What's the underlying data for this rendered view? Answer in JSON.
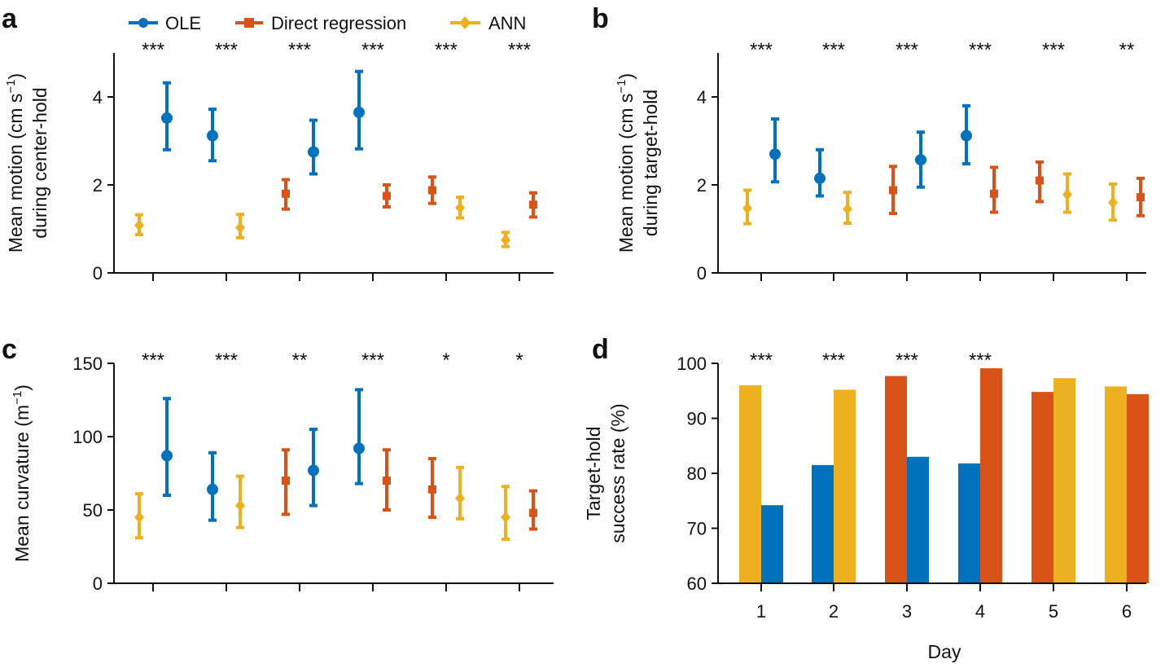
{
  "colors": {
    "ole": "#0072bd",
    "direct": "#d95319",
    "ann": "#edb120",
    "axis": "#111111"
  },
  "legend": [
    {
      "name": "OLE",
      "color": "#0072bd",
      "marker": "circle"
    },
    {
      "name": "Direct regression",
      "color": "#d95319",
      "marker": "square"
    },
    {
      "name": "ANN",
      "color": "#edb120",
      "marker": "diamond"
    }
  ],
  "chart_data": [
    {
      "panel": "a",
      "type": "errorbar",
      "ylabel_line1": "Mean motion (cm s",
      "ylabel_sup": "−1",
      "ylabel_line1_end": ")",
      "ylabel_line2": "during center-hold",
      "ylim": [
        0,
        5
      ],
      "yticks": [
        "0",
        "2",
        "4"
      ],
      "ytick_values": [
        0,
        2,
        4
      ],
      "x": [
        1,
        2,
        3,
        4,
        5,
        6
      ],
      "significance": [
        "***",
        "***",
        "***",
        "***",
        "***",
        "***"
      ],
      "series": [
        {
          "name": "OLE",
          "color": "#0072bd",
          "marker": "circle",
          "offsets": [
            0.1,
            -0.1,
            0.1,
            -0.1,
            null,
            null
          ],
          "values": [
            3.52,
            3.12,
            2.75,
            3.65,
            null,
            null
          ],
          "lo": [
            2.8,
            2.55,
            2.25,
            2.82,
            null,
            null
          ],
          "hi": [
            4.32,
            3.72,
            3.47,
            4.58,
            null,
            null
          ]
        },
        {
          "name": "Direct regression",
          "color": "#d95319",
          "marker": "square",
          "offsets": [
            null,
            null,
            -0.1,
            0.1,
            -0.1,
            0.1
          ],
          "values": [
            null,
            null,
            1.8,
            1.75,
            1.88,
            1.55
          ],
          "lo": [
            null,
            null,
            1.45,
            1.5,
            1.58,
            1.27
          ],
          "hi": [
            null,
            null,
            2.12,
            2.0,
            2.18,
            1.82
          ]
        },
        {
          "name": "ANN",
          "color": "#edb120",
          "marker": "diamond",
          "offsets": [
            -0.1,
            0.1,
            null,
            null,
            0.1,
            -0.1
          ],
          "values": [
            1.08,
            1.03,
            null,
            null,
            1.48,
            0.75
          ],
          "lo": [
            0.87,
            0.8,
            null,
            null,
            1.25,
            0.6
          ],
          "hi": [
            1.32,
            1.33,
            null,
            null,
            1.72,
            0.92
          ]
        }
      ]
    },
    {
      "panel": "b",
      "type": "errorbar",
      "ylabel_line1": "Mean motion (cm s",
      "ylabel_sup": "−1",
      "ylabel_line1_end": ")",
      "ylabel_line2": "during target-hold",
      "ylim": [
        0,
        5
      ],
      "yticks": [
        "0",
        "2",
        "4"
      ],
      "ytick_values": [
        0,
        2,
        4
      ],
      "x": [
        1,
        2,
        3,
        4,
        5,
        6
      ],
      "significance": [
        "***",
        "***",
        "***",
        "***",
        "***",
        "**"
      ],
      "series": [
        {
          "name": "OLE",
          "color": "#0072bd",
          "marker": "circle",
          "offsets": [
            0.1,
            -0.1,
            0.1,
            -0.1,
            null,
            null
          ],
          "values": [
            2.7,
            2.15,
            2.57,
            3.12,
            null,
            null
          ],
          "lo": [
            2.07,
            1.75,
            1.95,
            2.48,
            null,
            null
          ],
          "hi": [
            3.5,
            2.8,
            3.2,
            3.8,
            null,
            null
          ]
        },
        {
          "name": "Direct regression",
          "color": "#d95319",
          "marker": "square",
          "offsets": [
            null,
            null,
            -0.1,
            0.1,
            -0.1,
            0.1
          ],
          "values": [
            null,
            null,
            1.88,
            1.8,
            2.1,
            1.72
          ],
          "lo": [
            null,
            null,
            1.35,
            1.38,
            1.62,
            1.3
          ],
          "hi": [
            null,
            null,
            2.42,
            2.4,
            2.52,
            2.15
          ]
        },
        {
          "name": "ANN",
          "color": "#edb120",
          "marker": "diamond",
          "offsets": [
            -0.1,
            0.1,
            null,
            null,
            0.1,
            -0.1
          ],
          "values": [
            1.47,
            1.45,
            null,
            null,
            1.78,
            1.6
          ],
          "lo": [
            1.12,
            1.13,
            null,
            null,
            1.38,
            1.2
          ],
          "hi": [
            1.88,
            1.83,
            null,
            null,
            2.25,
            2.02
          ]
        }
      ]
    },
    {
      "panel": "c",
      "type": "errorbar",
      "ylabel_line1": "Mean curvature (m",
      "ylabel_sup": "−1",
      "ylabel_line1_end": ")",
      "ylabel_line2": "",
      "ylim": [
        0,
        150
      ],
      "yticks": [
        "0",
        "50",
        "100",
        "150"
      ],
      "ytick_values": [
        0,
        50,
        100,
        150
      ],
      "x": [
        1,
        2,
        3,
        4,
        5,
        6
      ],
      "significance": [
        "***",
        "***",
        "**",
        "***",
        "*",
        "*"
      ],
      "series": [
        {
          "name": "OLE",
          "color": "#0072bd",
          "marker": "circle",
          "offsets": [
            0.1,
            -0.1,
            0.1,
            -0.1,
            null,
            null
          ],
          "values": [
            87,
            64,
            77,
            92,
            null,
            null
          ],
          "lo": [
            60,
            43,
            53,
            68,
            null,
            null
          ],
          "hi": [
            126,
            89,
            105,
            132,
            null,
            null
          ]
        },
        {
          "name": "Direct regression",
          "color": "#d95319",
          "marker": "square",
          "offsets": [
            null,
            null,
            -0.1,
            0.1,
            -0.1,
            0.1
          ],
          "values": [
            null,
            null,
            70,
            70,
            64,
            48
          ],
          "lo": [
            null,
            null,
            47,
            50,
            45,
            37
          ],
          "hi": [
            null,
            null,
            91,
            91,
            85,
            63
          ]
        },
        {
          "name": "ANN",
          "color": "#edb120",
          "marker": "diamond",
          "offsets": [
            -0.1,
            0.1,
            null,
            null,
            0.1,
            -0.1
          ],
          "values": [
            45,
            53,
            null,
            null,
            58,
            45
          ],
          "lo": [
            31,
            38,
            null,
            null,
            44,
            30
          ],
          "hi": [
            61,
            73,
            null,
            null,
            79,
            66
          ]
        }
      ]
    },
    {
      "panel": "d",
      "type": "bar",
      "ylabel_line1": "Target-hold",
      "ylabel_line2": "success rate (%)",
      "xlabel": "Day",
      "ylim": [
        60,
        100
      ],
      "yticks": [
        "60",
        "70",
        "80",
        "90",
        "100"
      ],
      "ytick_values": [
        60,
        70,
        80,
        90,
        100
      ],
      "categories": [
        "1",
        "2",
        "3",
        "4",
        "5",
        "6"
      ],
      "significance": [
        "***",
        "***",
        "***",
        "***",
        "",
        ""
      ],
      "bars": [
        [
          {
            "series": "ANN",
            "color": "#edb120",
            "value": 96
          },
          {
            "series": "OLE",
            "color": "#0072bd",
            "value": 74.2
          }
        ],
        [
          {
            "series": "OLE",
            "color": "#0072bd",
            "value": 81.5
          },
          {
            "series": "ANN",
            "color": "#edb120",
            "value": 95.2
          }
        ],
        [
          {
            "series": "Direct regression",
            "color": "#d95319",
            "value": 97.7
          },
          {
            "series": "OLE",
            "color": "#0072bd",
            "value": 83
          }
        ],
        [
          {
            "series": "OLE",
            "color": "#0072bd",
            "value": 81.8
          },
          {
            "series": "Direct regression",
            "color": "#d95319",
            "value": 99.1
          }
        ],
        [
          {
            "series": "Direct regression",
            "color": "#d95319",
            "value": 94.8
          },
          {
            "series": "ANN",
            "color": "#edb120",
            "value": 97.3
          }
        ],
        [
          {
            "series": "ANN",
            "color": "#edb120",
            "value": 95.8
          },
          {
            "series": "Direct regression",
            "color": "#d95319",
            "value": 94.4
          }
        ]
      ]
    }
  ]
}
